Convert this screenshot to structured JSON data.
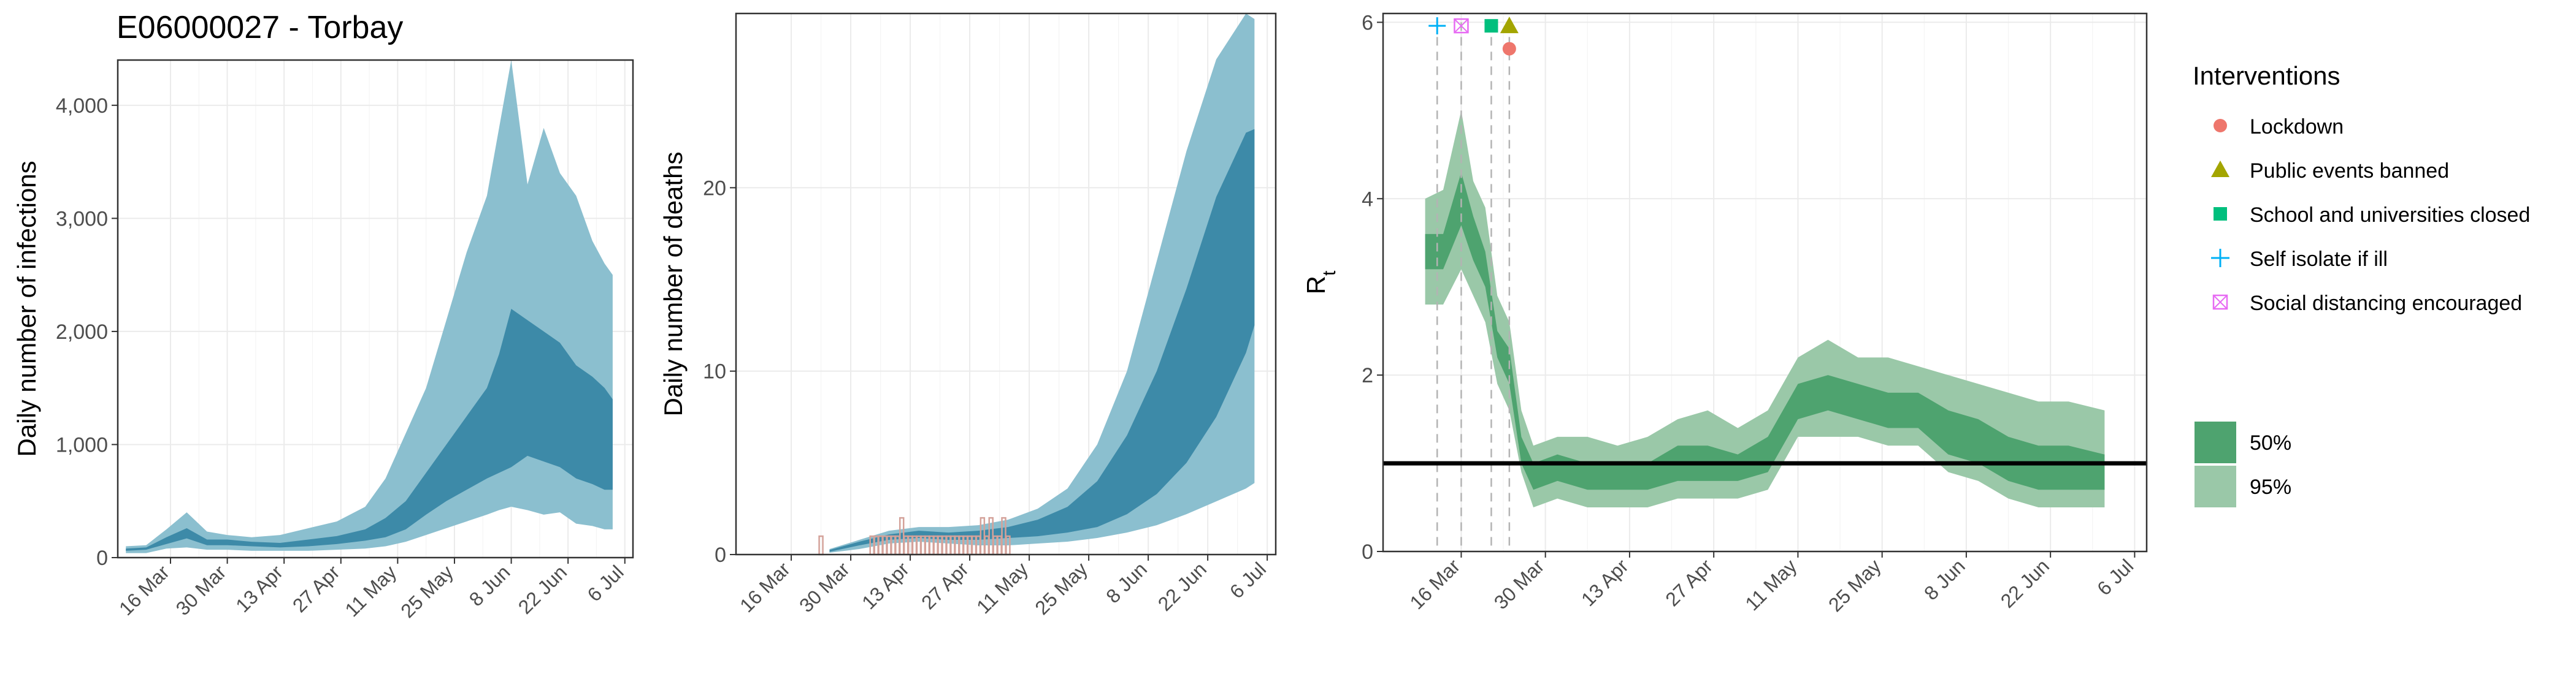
{
  "title": "E06000027 - Torbay",
  "colors": {
    "infections_95": "#8bbfcf",
    "infections_50": "#3d8aa8",
    "deaths_observed": "#d4a29a",
    "rt_95": "#9ac8a8",
    "rt_50": "#4ea36f",
    "lockdown": "#ee766c",
    "public_events": "#a3a500",
    "schools": "#00bf7d",
    "self_isolate": "#00b0f6",
    "social_distancing": "#e76bf3"
  },
  "legend": {
    "interventions_title": "Interventions",
    "interventions": [
      {
        "label": "Lockdown",
        "shape": "circle",
        "color": "#ee766c"
      },
      {
        "label": "Public events banned",
        "shape": "triangle",
        "color": "#a3a500"
      },
      {
        "label": "School and universities closed",
        "shape": "square",
        "color": "#00bf7d"
      },
      {
        "label": "Self isolate if ill",
        "shape": "plus",
        "color": "#00b0f6"
      },
      {
        "label": "Social distancing encouraged",
        "shape": "boxcross",
        "color": "#e76bf3"
      }
    ],
    "bands": [
      {
        "label": "50%",
        "color": "#4ea36f"
      },
      {
        "label": "95%",
        "color": "#9ac8a8"
      }
    ]
  },
  "chart_data": [
    {
      "type": "area",
      "title": "E06000027 - Torbay",
      "xlabel": "",
      "ylabel": "Daily number of infections",
      "x_ticks": [
        "16 Mar",
        "30 Mar",
        "13 Apr",
        "27 Apr",
        "11 May",
        "25 May",
        "8 Jun",
        "22 Jun",
        "6 Jul"
      ],
      "x_start": "2020-03-05",
      "x_end": "2020-07-03",
      "y_ticks": [
        "0",
        "1,000",
        "2,000",
        "3,000",
        "4,000"
      ],
      "ylim": [
        0,
        4400
      ],
      "grid": true,
      "series": [
        {
          "name": "95%",
          "x": [
            "2020-03-05",
            "2020-03-10",
            "2020-03-15",
            "2020-03-20",
            "2020-03-25",
            "2020-03-30",
            "2020-04-05",
            "2020-04-12",
            "2020-04-19",
            "2020-04-26",
            "2020-05-03",
            "2020-05-08",
            "2020-05-13",
            "2020-05-18",
            "2020-05-23",
            "2020-05-28",
            "2020-06-02",
            "2020-06-05",
            "2020-06-08",
            "2020-06-12",
            "2020-06-16",
            "2020-06-20",
            "2020-06-24",
            "2020-06-28",
            "2020-07-01",
            "2020-07-03"
          ],
          "lower": [
            40,
            40,
            80,
            90,
            70,
            70,
            60,
            60,
            60,
            70,
            80,
            100,
            140,
            200,
            260,
            320,
            380,
            420,
            450,
            420,
            380,
            400,
            300,
            280,
            250,
            250
          ],
          "upper": [
            100,
            110,
            250,
            400,
            230,
            200,
            180,
            200,
            260,
            320,
            450,
            700,
            1100,
            1500,
            2100,
            2700,
            3200,
            3800,
            4400,
            3300,
            3800,
            3400,
            3200,
            2800,
            2600,
            2500
          ]
        },
        {
          "name": "50%",
          "x": [
            "2020-03-05",
            "2020-03-10",
            "2020-03-15",
            "2020-03-20",
            "2020-03-25",
            "2020-03-30",
            "2020-04-05",
            "2020-04-12",
            "2020-04-19",
            "2020-04-26",
            "2020-05-03",
            "2020-05-08",
            "2020-05-13",
            "2020-05-18",
            "2020-05-23",
            "2020-05-28",
            "2020-06-02",
            "2020-06-05",
            "2020-06-08",
            "2020-06-12",
            "2020-06-16",
            "2020-06-20",
            "2020-06-24",
            "2020-06-28",
            "2020-07-01",
            "2020-07-03"
          ],
          "lower": [
            60,
            70,
            120,
            170,
            110,
            110,
            100,
            90,
            100,
            120,
            150,
            180,
            250,
            380,
            500,
            600,
            700,
            750,
            800,
            900,
            850,
            800,
            700,
            650,
            600,
            600
          ],
          "upper": [
            80,
            90,
            180,
            260,
            160,
            160,
            140,
            130,
            160,
            190,
            250,
            350,
            500,
            750,
            1000,
            1250,
            1500,
            1800,
            2200,
            2100,
            2000,
            1900,
            1700,
            1600,
            1500,
            1400
          ]
        }
      ]
    },
    {
      "type": "area",
      "xlabel": "",
      "ylabel": "Daily number of deaths",
      "x_ticks": [
        "16 Mar",
        "30 Mar",
        "13 Apr",
        "27 Apr",
        "11 May",
        "25 May",
        "8 Jun",
        "22 Jun",
        "6 Jul"
      ],
      "x_start": "2020-03-05",
      "x_end": "2020-07-03",
      "y_ticks": [
        "0",
        "10",
        "20"
      ],
      "ylim": [
        0,
        29.5
      ],
      "grid": true,
      "series": [
        {
          "name": "95%",
          "x": [
            "2020-03-25",
            "2020-04-01",
            "2020-04-08",
            "2020-04-15",
            "2020-04-22",
            "2020-04-29",
            "2020-05-06",
            "2020-05-13",
            "2020-05-20",
            "2020-05-27",
            "2020-06-03",
            "2020-06-10",
            "2020-06-17",
            "2020-06-24",
            "2020-07-01",
            "2020-07-03"
          ],
          "lower": [
            0.1,
            0.3,
            0.6,
            0.7,
            0.6,
            0.5,
            0.5,
            0.6,
            0.7,
            0.9,
            1.2,
            1.6,
            2.2,
            2.9,
            3.6,
            3.9
          ],
          "upper": [
            0.3,
            0.8,
            1.3,
            1.5,
            1.5,
            1.6,
            1.9,
            2.5,
            3.6,
            6.0,
            10.0,
            16.0,
            22.0,
            27.0,
            29.5,
            29.2
          ]
        },
        {
          "name": "50%",
          "x": [
            "2020-03-25",
            "2020-04-01",
            "2020-04-08",
            "2020-04-15",
            "2020-04-22",
            "2020-04-29",
            "2020-05-06",
            "2020-05-13",
            "2020-05-20",
            "2020-05-27",
            "2020-06-03",
            "2020-06-10",
            "2020-06-17",
            "2020-06-24",
            "2020-07-01",
            "2020-07-03"
          ],
          "lower": [
            0.15,
            0.5,
            0.8,
            0.9,
            0.8,
            0.8,
            0.9,
            1.0,
            1.2,
            1.5,
            2.2,
            3.3,
            5.0,
            7.5,
            11.0,
            12.5
          ],
          "upper": [
            0.25,
            0.7,
            1.1,
            1.3,
            1.2,
            1.3,
            1.5,
            1.9,
            2.6,
            4.0,
            6.5,
            10.0,
            14.5,
            19.5,
            23.0,
            23.2
          ]
        },
        {
          "name": "observed",
          "type": "bar",
          "x": [
            "2020-03-23",
            "2020-04-04",
            "2020-04-05",
            "2020-04-06",
            "2020-04-07",
            "2020-04-08",
            "2020-04-09",
            "2020-04-10",
            "2020-04-11",
            "2020-04-12",
            "2020-04-13",
            "2020-04-14",
            "2020-04-15",
            "2020-04-16",
            "2020-04-17",
            "2020-04-18",
            "2020-04-19",
            "2020-04-20",
            "2020-04-21",
            "2020-04-22",
            "2020-04-23",
            "2020-04-24",
            "2020-04-25",
            "2020-04-26",
            "2020-04-27",
            "2020-04-28",
            "2020-04-29",
            "2020-04-30",
            "2020-05-01",
            "2020-05-02",
            "2020-05-03",
            "2020-05-04",
            "2020-05-05",
            "2020-05-06"
          ],
          "values": [
            1,
            1,
            1,
            1,
            1,
            1,
            1,
            1,
            2,
            1,
            1,
            1,
            1,
            1,
            1,
            1,
            1,
            1,
            1,
            1,
            1,
            1,
            1,
            1,
            1,
            1,
            1,
            2,
            1,
            2,
            1,
            1,
            2,
            1
          ]
        }
      ]
    },
    {
      "type": "area",
      "xlabel": "",
      "ylabel": "R",
      "ylabel_subscript": "t",
      "x_ticks": [
        "16 Mar",
        "30 Mar",
        "13 Apr",
        "27 Apr",
        "11 May",
        "25 May",
        "8 Jun",
        "22 Jun",
        "6 Jul"
      ],
      "x_start": "2020-03-05",
      "x_end": "2020-07-03",
      "y_ticks": [
        "0",
        "2",
        "4",
        "6"
      ],
      "ylim": [
        0,
        6.1
      ],
      "grid": true,
      "reference_line": 1,
      "intervention_dates": {
        "self_isolate": "2020-03-12",
        "social_distancing": "2020-03-16",
        "schools": "2020-03-21",
        "public_events": "2020-03-24",
        "lockdown": "2020-03-24"
      },
      "series": [
        {
          "name": "95%",
          "x": [
            "2020-03-10",
            "2020-03-13",
            "2020-03-16",
            "2020-03-18",
            "2020-03-20",
            "2020-03-22",
            "2020-03-24",
            "2020-03-26",
            "2020-03-28",
            "2020-04-01",
            "2020-04-06",
            "2020-04-11",
            "2020-04-16",
            "2020-04-21",
            "2020-04-26",
            "2020-05-01",
            "2020-05-06",
            "2020-05-11",
            "2020-05-16",
            "2020-05-21",
            "2020-05-26",
            "2020-05-31",
            "2020-06-05",
            "2020-06-10",
            "2020-06-15",
            "2020-06-20",
            "2020-06-25",
            "2020-07-01"
          ],
          "lower": [
            2.8,
            2.8,
            3.2,
            2.9,
            2.6,
            1.9,
            1.6,
            0.9,
            0.5,
            0.6,
            0.5,
            0.5,
            0.5,
            0.6,
            0.6,
            0.6,
            0.7,
            1.3,
            1.3,
            1.3,
            1.2,
            1.2,
            0.9,
            0.8,
            0.6,
            0.5,
            0.5,
            0.5
          ],
          "upper": [
            4.0,
            4.1,
            5.0,
            4.2,
            3.9,
            2.9,
            2.6,
            1.6,
            1.2,
            1.3,
            1.3,
            1.2,
            1.3,
            1.5,
            1.6,
            1.4,
            1.6,
            2.2,
            2.4,
            2.2,
            2.2,
            2.1,
            2.0,
            1.9,
            1.8,
            1.7,
            1.7,
            1.6
          ]
        },
        {
          "name": "50%",
          "x": [
            "2020-03-10",
            "2020-03-13",
            "2020-03-16",
            "2020-03-18",
            "2020-03-20",
            "2020-03-22",
            "2020-03-24",
            "2020-03-26",
            "2020-03-28",
            "2020-04-01",
            "2020-04-06",
            "2020-04-11",
            "2020-04-16",
            "2020-04-21",
            "2020-04-26",
            "2020-05-01",
            "2020-05-06",
            "2020-05-11",
            "2020-05-16",
            "2020-05-21",
            "2020-05-26",
            "2020-05-31",
            "2020-06-05",
            "2020-06-10",
            "2020-06-15",
            "2020-06-20",
            "2020-06-25",
            "2020-07-01"
          ],
          "lower": [
            3.2,
            3.2,
            3.7,
            3.3,
            3.0,
            2.2,
            1.9,
            1.0,
            0.7,
            0.8,
            0.7,
            0.7,
            0.7,
            0.8,
            0.8,
            0.8,
            0.9,
            1.5,
            1.6,
            1.5,
            1.4,
            1.4,
            1.1,
            1.0,
            0.8,
            0.7,
            0.7,
            0.7
          ],
          "upper": [
            3.6,
            3.6,
            4.3,
            3.8,
            3.4,
            2.5,
            2.3,
            1.3,
            1.0,
            1.1,
            1.0,
            1.0,
            1.0,
            1.2,
            1.2,
            1.1,
            1.3,
            1.9,
            2.0,
            1.9,
            1.8,
            1.8,
            1.6,
            1.5,
            1.3,
            1.2,
            1.2,
            1.1
          ]
        }
      ]
    }
  ]
}
